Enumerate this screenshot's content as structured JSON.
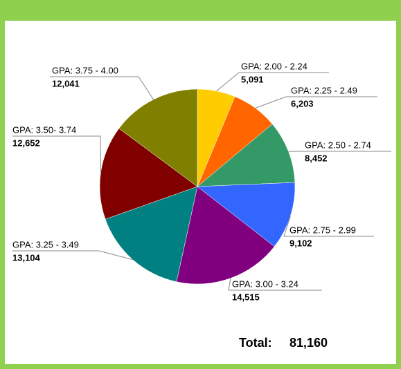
{
  "chart_data": {
    "type": "pie",
    "categories": [
      "GPA: 2.00 - 2.24",
      "GPA: 2.25 - 2.49",
      "GPA: 2.50 - 2.74",
      "GPA: 2.75 - 2.99",
      "GPA: 3.00 - 3.24",
      "GPA: 3.25 - 3.49",
      "GPA: 3.50- 3.74",
      "GPA: 3.75 - 4.00"
    ],
    "values": [
      5091,
      6203,
      8452,
      9102,
      14515,
      13104,
      12652,
      12041
    ],
    "value_labels": [
      "5,091",
      "6,203",
      "8,452",
      "9,102",
      "14,515",
      "13,104",
      "12,652",
      "12,041"
    ],
    "colors": [
      "#ffcc00",
      "#ff6600",
      "#339966",
      "#3366ff",
      "#800080",
      "#008080",
      "#800000",
      "#808000"
    ],
    "total_label": "Total:",
    "total": 81160,
    "total_value_label": "81,160"
  }
}
